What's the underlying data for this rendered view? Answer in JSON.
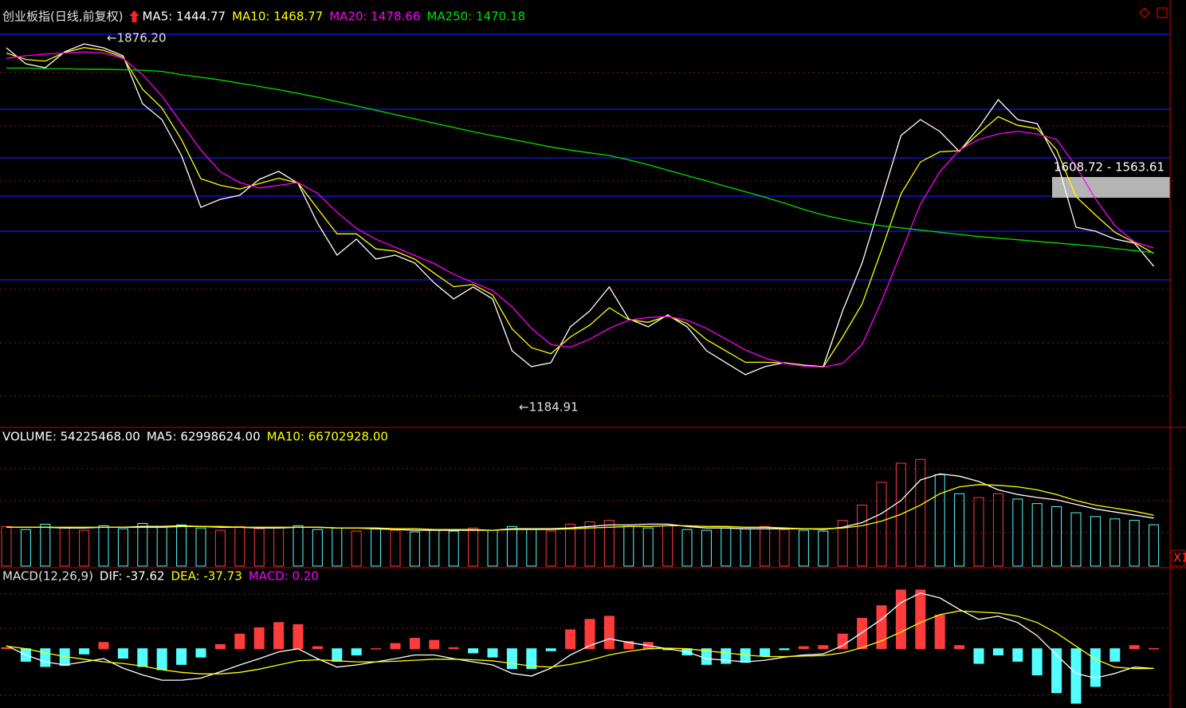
{
  "chart_data": [
    {
      "type": "line",
      "title": "创业板指(日线,前复权)",
      "ylim": [
        1148,
        1885
      ],
      "annotations": [
        "←1876.20",
        "←1184.91",
        "1608.72 - 1563.61"
      ],
      "series": [
        {
          "name": "MA5: 1444.77",
          "color": "#ffffff",
          "style": "line",
          "values": [
            1849.6,
            1820.0,
            1812.6,
            1842.2,
            1856.9,
            1849.6,
            1834.8,
            1746.2,
            1716.7,
            1650.2,
            1554.2,
            1569.0,
            1576.4,
            1605.9,
            1620.7,
            1598.5,
            1524.7,
            1465.6,
            1495.2,
            1458.3,
            1465.6,
            1450.9,
            1414.0,
            1384.4,
            1406.6,
            1384.4,
            1288.5,
            1258.9,
            1266.3,
            1332.8,
            1362.3,
            1406.6,
            1347.5,
            1332.8,
            1354.9,
            1332.8,
            1288.5,
            1266.3,
            1244.2,
            1258.9,
            1266.3,
            1261.9,
            1258.9,
            1362.3,
            1450.9,
            1569.0,
            1687.1,
            1716.7,
            1694.5,
            1657.6,
            1701.9,
            1753.6,
            1716.7,
            1709.3,
            1642.8,
            1517.3,
            1509.9,
            1495.2,
            1487.8,
            1444.77
          ]
        },
        {
          "name": "MA10: 1468.77",
          "color": "#ffff00",
          "style": "line",
          "values": [
            1840,
            1828,
            1825,
            1841,
            1850,
            1845,
            1832,
            1773,
            1738,
            1680,
            1607,
            1595,
            1588,
            1598,
            1608,
            1599,
            1552,
            1505,
            1505,
            1477,
            1473,
            1458,
            1432,
            1407,
            1411,
            1392,
            1329,
            1294,
            1283,
            1314,
            1336,
            1368,
            1346,
            1341,
            1353,
            1339,
            1309,
            1288,
            1267,
            1267,
            1266,
            1261,
            1258,
            1314,
            1375,
            1475,
            1579,
            1638,
            1657,
            1659,
            1691,
            1722,
            1706,
            1700,
            1661,
            1574,
            1540,
            1508,
            1489,
            1468.77
          ]
        },
        {
          "name": "MA20: 1478.66",
          "color": "#ff00ff",
          "style": "line",
          "values": [
            1830,
            1835,
            1838,
            1840,
            1842,
            1840,
            1830,
            1800,
            1760,
            1710,
            1660,
            1620,
            1600,
            1590,
            1595,
            1600,
            1580,
            1545,
            1515,
            1495,
            1480,
            1465,
            1450,
            1430,
            1415,
            1400,
            1370,
            1330,
            1300,
            1295,
            1310,
            1330,
            1345,
            1350,
            1352,
            1345,
            1330,
            1310,
            1290,
            1275,
            1265,
            1260,
            1258,
            1265,
            1300,
            1380,
            1470,
            1560,
            1620,
            1660,
            1680,
            1690,
            1695,
            1690,
            1680,
            1630,
            1570,
            1520,
            1490,
            1478.66
          ]
        },
        {
          "name": "MA250: 1470.18",
          "color": "#00e000",
          "style": "line",
          "values": [
            1812,
            1812,
            1811,
            1811,
            1810,
            1810,
            1809,
            1808,
            1806,
            1800,
            1795,
            1790,
            1784,
            1778,
            1772,
            1765,
            1758,
            1750,
            1742,
            1734,
            1726,
            1718,
            1710,
            1702,
            1694,
            1687,
            1680,
            1673,
            1666,
            1660,
            1655,
            1650,
            1642,
            1633,
            1623,
            1613,
            1603,
            1593,
            1583,
            1573,
            1562,
            1550,
            1540,
            1532,
            1525,
            1520,
            1516,
            1512,
            1508,
            1504,
            1500,
            1497,
            1494,
            1491,
            1488,
            1485,
            1482,
            1478,
            1474,
            1470.18
          ]
        }
      ]
    },
    {
      "type": "bar",
      "ylim": [
        0,
        180000000
      ],
      "colors": [
        "#ff3c3c",
        "#54ffff"
      ],
      "corner_label": "X1",
      "series": [
        {
          "name": "VOLUME: 54225468.00",
          "color": "#ffffff",
          "style": "bar",
          "values": [
            52000000,
            48000000,
            55000000,
            50000000,
            47000000,
            53000000,
            49000000,
            56000000,
            51000000,
            54000000,
            50000000,
            47000000,
            52000000,
            49000000,
            51000000,
            53000000,
            48000000,
            50000000,
            46000000,
            49000000,
            47000000,
            45000000,
            48000000,
            46000000,
            50000000,
            47000000,
            52000000,
            49000000,
            46000000,
            55000000,
            58000000,
            60000000,
            52000000,
            50000000,
            53000000,
            48000000,
            47000000,
            50000000,
            49000000,
            52000000,
            48000000,
            47000000,
            46000000,
            60000000,
            80000000,
            110000000,
            135000000,
            140000000,
            120000000,
            95000000,
            90000000,
            95000000,
            88000000,
            82000000,
            78000000,
            70000000,
            65000000,
            62000000,
            60000000,
            54225468
          ]
        },
        {
          "name": "MA5: 62998624.00",
          "color": "#ffffff",
          "style": "line",
          "values": [
            51000000,
            51000000,
            51000000,
            50000000,
            50000000,
            51000000,
            51000000,
            52000000,
            52000000,
            53000000,
            52000000,
            51000000,
            51000000,
            50000000,
            50000000,
            51000000,
            51000000,
            50000000,
            50000000,
            49000000,
            48000000,
            47000000,
            47000000,
            47000000,
            47000000,
            47000000,
            49000000,
            49000000,
            49000000,
            50000000,
            52000000,
            54000000,
            54000000,
            55000000,
            55000000,
            52000000,
            50000000,
            50000000,
            49000000,
            49000000,
            49000000,
            49000000,
            48000000,
            51000000,
            57000000,
            69000000,
            86000000,
            113000000,
            121000000,
            118000000,
            111000000,
            100000000,
            94000000,
            90000000,
            87000000,
            81000000,
            75000000,
            71000000,
            67000000,
            62998624
          ]
        },
        {
          "name": "MA10: 66702928.00",
          "color": "#ffff00",
          "style": "line",
          "values": [
            51000000,
            51000000,
            51000000,
            51000000,
            51000000,
            51000000,
            51000000,
            51000000,
            51000000,
            52000000,
            52000000,
            52000000,
            51000000,
            51000000,
            51000000,
            51000000,
            51000000,
            50000000,
            50000000,
            50000000,
            49000000,
            49000000,
            48000000,
            48000000,
            48000000,
            47000000,
            48000000,
            48000000,
            48000000,
            49000000,
            50000000,
            51000000,
            52000000,
            52000000,
            53000000,
            53000000,
            52000000,
            52000000,
            51000000,
            51000000,
            50000000,
            49000000,
            49000000,
            50000000,
            53000000,
            59000000,
            68000000,
            80000000,
            95000000,
            104000000,
            107000000,
            106000000,
            104000000,
            100000000,
            94000000,
            86000000,
            80000000,
            76000000,
            72000000,
            66702928
          ]
        }
      ]
    },
    {
      "type": "macd",
      "title": "MACD(12,26,9)",
      "ylim": [
        -110,
        150
      ],
      "colors": [
        "#ff3c3c",
        "#54ffff"
      ],
      "series": [
        {
          "name": "DIF: -37.62",
          "color": "#ffffff",
          "style": "line",
          "values": [
            6,
            -12,
            -25,
            -31,
            -25,
            -19,
            -37,
            -50,
            -60,
            -60,
            -56,
            -44,
            -31,
            -19,
            -6,
            0,
            -19,
            -35,
            -31,
            -25,
            -19,
            -12,
            -12,
            -19,
            -25,
            -31,
            -47,
            -52,
            -37,
            -12,
            6,
            19,
            12,
            6,
            0,
            -6,
            -19,
            -22,
            -25,
            -22,
            -16,
            -12,
            -10,
            6,
            31,
            56,
            88,
            106,
            97,
            75,
            56,
            62,
            50,
            25,
            -12,
            -47,
            -56,
            -47,
            -35,
            -37.62
          ]
        },
        {
          "name": "DEA: -37.73",
          "color": "#ffff00",
          "style": "line",
          "values": [
            5,
            0,
            -8,
            -15,
            -20,
            -25,
            -28,
            -33,
            -40,
            -45,
            -48,
            -48,
            -45,
            -39,
            -31,
            -23,
            -21,
            -23,
            -25,
            -25,
            -24,
            -22,
            -20,
            -20,
            -21,
            -23,
            -28,
            -33,
            -35,
            -30,
            -22,
            -12,
            -5,
            0,
            1,
            0,
            -4,
            -8,
            -12,
            -15,
            -15,
            -14,
            -13,
            -8,
            2,
            15,
            32,
            50,
            65,
            72,
            70,
            68,
            62,
            50,
            30,
            5,
            -20,
            -35,
            -38,
            -37.73
          ]
        },
        {
          "name": "MACD: 0.20",
          "color": "#ff00ff",
          "style": "bar",
          "values": [
            2,
            -24,
            -34,
            -32,
            -10,
            12,
            -18,
            -34,
            -40,
            -30,
            -16,
            8,
            28,
            40,
            50,
            46,
            4,
            -24,
            -12,
            0,
            10,
            20,
            16,
            2,
            -8,
            -16,
            -38,
            -38,
            -4,
            36,
            56,
            62,
            14,
            12,
            -2,
            -12,
            -30,
            -28,
            -26,
            -14,
            -2,
            4,
            6,
            28,
            58,
            82,
            112,
            112,
            64,
            6,
            -28,
            -12,
            -24,
            -50,
            -84,
            -104,
            -72,
            -24,
            6,
            0.2
          ]
        }
      ]
    }
  ]
}
